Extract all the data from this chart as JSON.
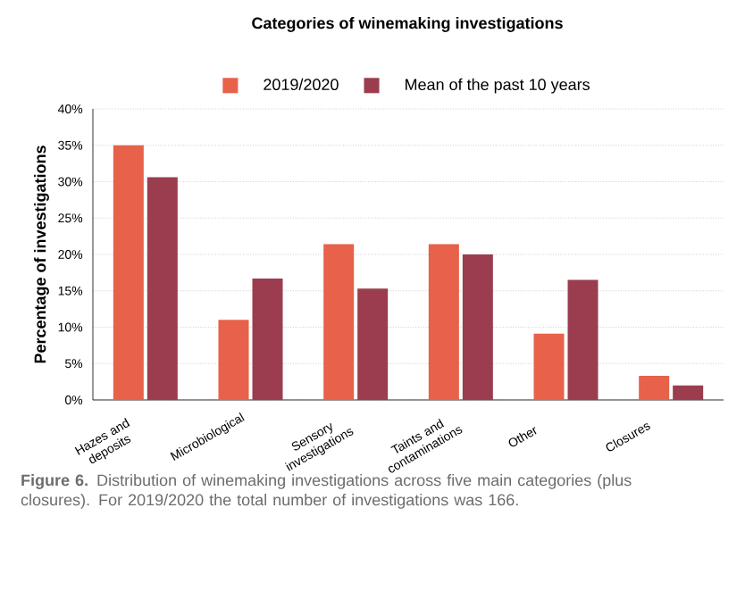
{
  "chart_data": {
    "type": "bar",
    "title": "Categories of winemaking investigations",
    "ylabel": "Percentage of investigations",
    "categories": [
      "Hazes and deposits",
      "Microbiological",
      "Sensory investigations",
      "Taints and contaminations",
      "Other",
      "Closures"
    ],
    "series": [
      {
        "name": "2019/2020",
        "color": "#e8614a",
        "values": [
          35,
          11,
          21.4,
          21.4,
          9.1,
          3.3
        ]
      },
      {
        "name": "Mean of the past 10 years",
        "color": "#9b3d4e",
        "values": [
          30.6,
          16.7,
          15.3,
          20,
          16.5,
          2
        ]
      }
    ],
    "ylim": [
      0,
      40
    ],
    "yticks": [
      {
        "value": 0,
        "label": "0%"
      },
      {
        "value": 5,
        "label": "5%"
      },
      {
        "value": 10,
        "label": "10%"
      },
      {
        "value": 15,
        "label": "15%"
      },
      {
        "value": 20,
        "label": "20%"
      },
      {
        "value": 25,
        "label": "25%"
      },
      {
        "value": 30,
        "label": "30%"
      },
      {
        "value": 35,
        "label": "35%"
      },
      {
        "value": 40,
        "label": "40%"
      }
    ],
    "grid": "y",
    "legend": "top",
    "annotations": [
      "**Figure 6.** Distribution of winemaking investigations across five main categories (plus closures). For 2019/2020 the total number of investigations was 166."
    ]
  }
}
